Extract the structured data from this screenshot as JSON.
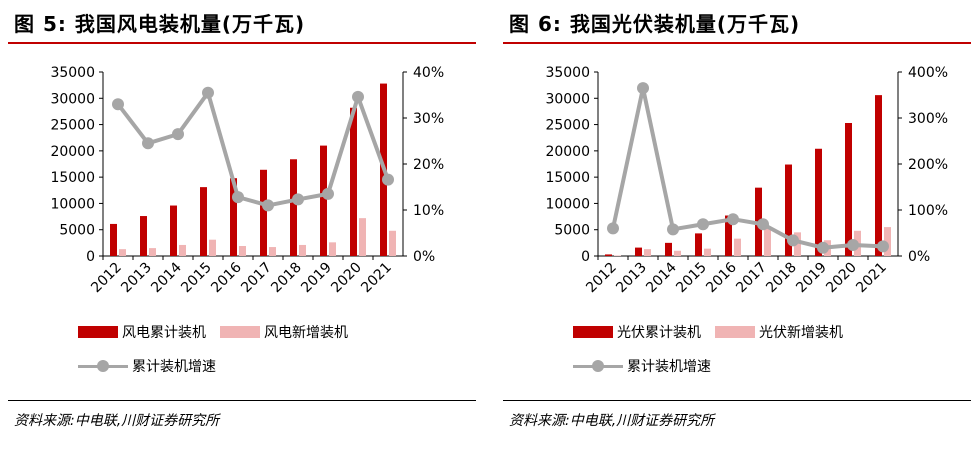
{
  "charts": [
    {
      "title": "图 5:  我国风电装机量(万千瓦)",
      "source": "资料来源:中电联,川财证券研究所",
      "legend": {
        "bar1": "风电累计装机",
        "bar2": "风电新增装机",
        "line": "累计装机增速"
      },
      "colors": {
        "bar1": "#c00000",
        "bar2": "#f0b4b4",
        "line": "#a6a6a6"
      },
      "chart_data": {
        "type": "bar",
        "categories": [
          "2012",
          "2013",
          "2014",
          "2015",
          "2016",
          "2017",
          "2018",
          "2019",
          "2020",
          "2021"
        ],
        "series": [
          {
            "name": "风电累计装机",
            "kind": "bar",
            "axis": "left",
            "values": [
              6100,
              7600,
              9600,
              13100,
              14800,
              16400,
              18400,
              21000,
              28200,
              32800
            ]
          },
          {
            "name": "风电新增装机",
            "kind": "bar",
            "axis": "left",
            "values": [
              1300,
              1500,
              2100,
              3100,
              1900,
              1700,
              2100,
              2600,
              7200,
              4800
            ]
          },
          {
            "name": "累计装机增速",
            "kind": "line",
            "axis": "right",
            "values": [
              33,
              24.5,
              26.5,
              35.5,
              12.8,
              11,
              12.3,
              13.5,
              34.6,
              16.6
            ]
          }
        ],
        "left_axis": {
          "min": 0,
          "max": 35000,
          "ticks": [
            "0",
            "5000",
            "10000",
            "15000",
            "20000",
            "25000",
            "30000",
            "35000"
          ]
        },
        "right_axis": {
          "min": 0,
          "max": 40,
          "ticks": [
            "0%",
            "10%",
            "20%",
            "30%",
            "40%"
          ]
        },
        "grid": false,
        "legend_position": "bottom"
      }
    },
    {
      "title": "图 6:  我国光伏装机量(万千瓦)",
      "source": "资料来源:中电联,川财证券研究所",
      "legend": {
        "bar1": "光伏累计装机",
        "bar2": "光伏新增装机",
        "line": "累计装机增速"
      },
      "colors": {
        "bar1": "#c00000",
        "bar2": "#f0b4b4",
        "line": "#a6a6a6"
      },
      "chart_data": {
        "type": "bar",
        "categories": [
          "2012",
          "2013",
          "2014",
          "2015",
          "2016",
          "2017",
          "2018",
          "2019",
          "2020",
          "2021"
        ],
        "series": [
          {
            "name": "光伏累计装机",
            "kind": "bar",
            "axis": "left",
            "values": [
              300,
              1600,
              2500,
              4300,
              7700,
              13000,
              17400,
              20400,
              25300,
              30600
            ]
          },
          {
            "name": "光伏新增装机",
            "kind": "bar",
            "axis": "left",
            "values": [
              100,
              1300,
              1000,
              1400,
              3300,
              5300,
              4500,
              3000,
              4800,
              5500
            ]
          },
          {
            "name": "累计装机增速",
            "kind": "line",
            "axis": "right",
            "values": [
              60,
              365,
              58,
              69,
              80,
              69,
              34,
              18,
              24,
              21
            ]
          }
        ],
        "left_axis": {
          "min": 0,
          "max": 35000,
          "ticks": [
            "0",
            "5000",
            "10000",
            "15000",
            "20000",
            "25000",
            "30000",
            "35000"
          ]
        },
        "right_axis": {
          "min": 0,
          "max": 400,
          "ticks": [
            "0%",
            "100%",
            "200%",
            "300%",
            "400%"
          ]
        },
        "grid": false,
        "legend_position": "bottom"
      }
    }
  ]
}
